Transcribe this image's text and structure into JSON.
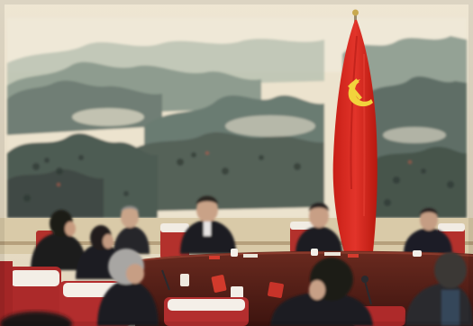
{
  "scene": {
    "description_visible_text": "",
    "colors": {
      "wall": "#e9dfc9",
      "painting_paper": "#eee6d2",
      "mountain_dark": "#5c6a63",
      "mountain_mid": "#7f8f84",
      "mountain_light": "#a9b3a4",
      "flag_red": "#d8261c",
      "flag_emblem": "#f2d33c",
      "table_wood": "#5a1f17",
      "chair_red": "#b42a2a",
      "chair_cover": "#f3efe8",
      "suit": "#1f1d24"
    },
    "icons": [
      "party-flag-emblem"
    ]
  }
}
